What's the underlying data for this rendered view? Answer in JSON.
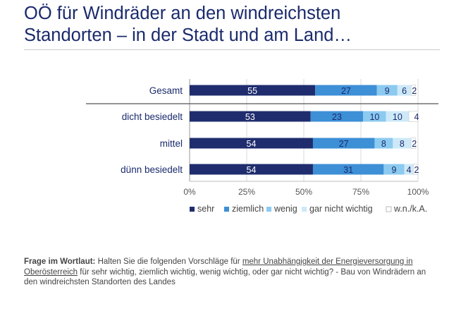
{
  "title_line1": "OÖ für Windräder an den windreichsten",
  "title_line2": "Standorten – in der Stadt und am Land…",
  "colors": {
    "title": "#1a2a6c",
    "sehr": "#1f2d6e",
    "ziemlich": "#3d8fd6",
    "wenig": "#8ccaf0",
    "gar_nicht_wichtig": "#cde9f8",
    "wnka": "#ffffff"
  },
  "chart_data": {
    "type": "bar",
    "orientation": "horizontal",
    "stacked": true,
    "percent": true,
    "categories": [
      "Gesamt",
      "dicht besiedelt",
      "mittel",
      "dünn besiedelt"
    ],
    "series": [
      {
        "name": "sehr",
        "values": [
          55,
          53,
          54,
          54
        ]
      },
      {
        "name": "ziemlich",
        "values": [
          27,
          23,
          27,
          31
        ]
      },
      {
        "name": "wenig",
        "values": [
          9,
          10,
          8,
          9
        ]
      },
      {
        "name": "gar nicht wichtig",
        "values": [
          6,
          10,
          8,
          4
        ]
      },
      {
        "name": "w.n./k.A.",
        "values": [
          2,
          4,
          2,
          2
        ]
      }
    ],
    "xlim": [
      0,
      100
    ],
    "xticks": [
      "0%",
      "25%",
      "50%",
      "75%",
      "100%"
    ],
    "legend_position": "bottom",
    "grid": true
  },
  "footnote": {
    "label": "Frage im Wortlaut:",
    "text_before": " Halten Sie die folgenden Vorschläge für ",
    "underlined": "mehr Unabhängigkeit der Energieversorgung in Oberösterreich",
    "text_after": " für sehr wichtig, ziemlich wichtig, wenig wichtig, oder gar nicht wichtig? - Bau von Windrädern an den windreichsten Standorten des Landes"
  }
}
